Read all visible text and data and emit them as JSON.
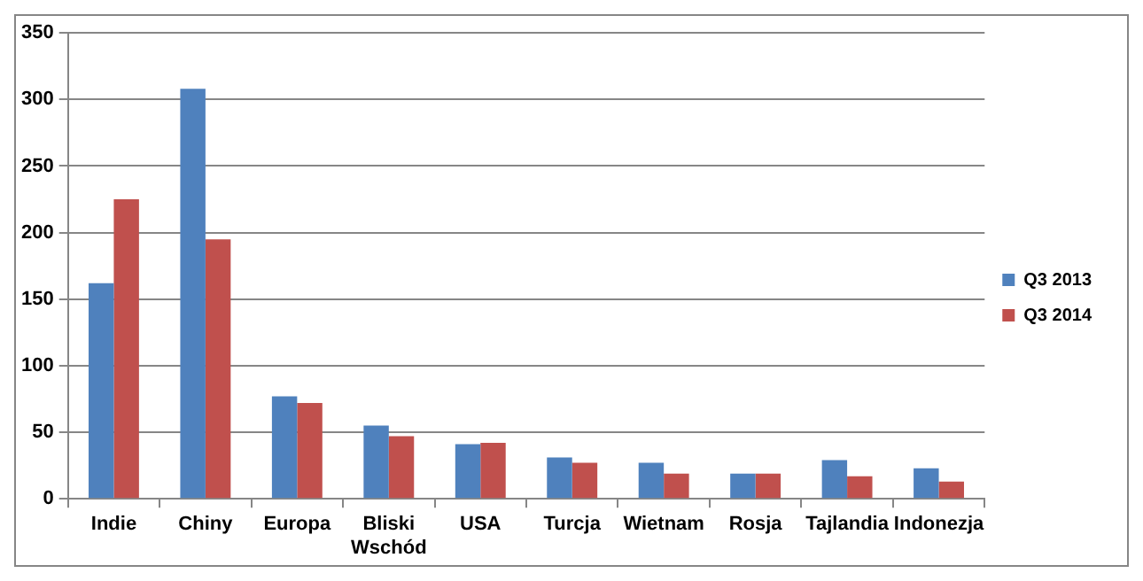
{
  "chart_data": {
    "type": "bar",
    "categories": [
      "Indie",
      "Chiny",
      "Europa",
      "Bliski Wschód",
      "USA",
      "Turcja",
      "Wietnam",
      "Rosja",
      "Tajlandia",
      "Indonezja"
    ],
    "series": [
      {
        "name": "Q3 2013",
        "color": "#4f81bd",
        "values": [
          162,
          308,
          77,
          55,
          41,
          31,
          27,
          19,
          29,
          23
        ]
      },
      {
        "name": "Q3 2014",
        "color": "#c0504d",
        "values": [
          225,
          195,
          72,
          47,
          42,
          27,
          19,
          19,
          17,
          13
        ]
      }
    ],
    "ylim": [
      0,
      350
    ],
    "yticks": [
      0,
      50,
      100,
      150,
      200,
      250,
      300,
      350
    ],
    "grid": "y",
    "legend": "right"
  }
}
